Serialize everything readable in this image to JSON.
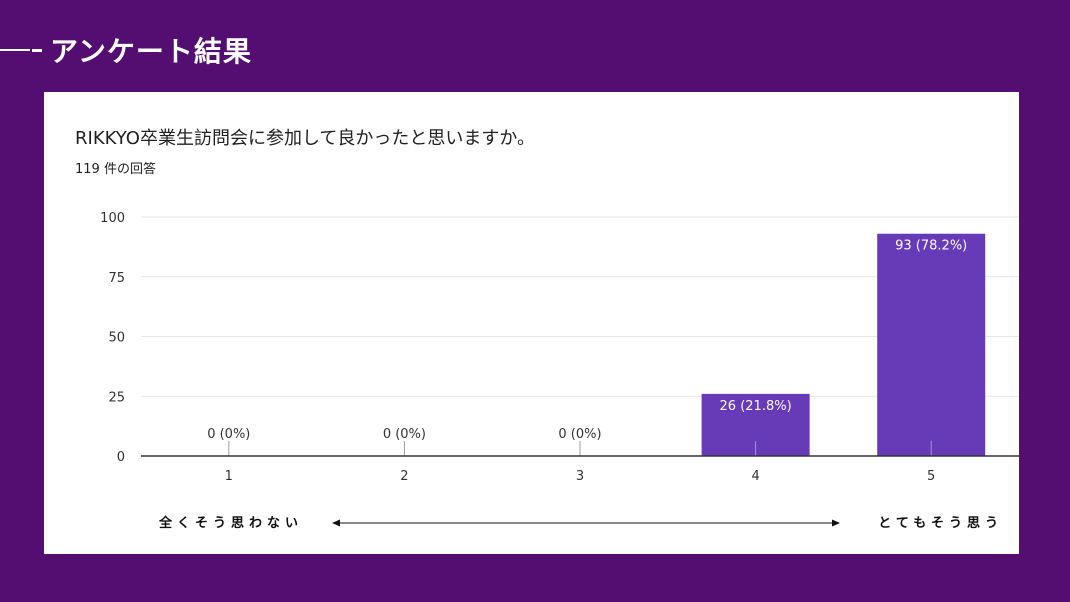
{
  "slide": {
    "title": "アンケート結果"
  },
  "card": {
    "question": "RIKKYO卒業生訪問会に参加して良かったと思いますか。",
    "responses": "119 件の回答"
  },
  "scale": {
    "left_label": "全くそう思わない",
    "right_label": "とてもそう思う"
  },
  "colors": {
    "background": "#540e71",
    "bar": "#673ab7",
    "grid": "#e6e6e6",
    "axis": "#333333"
  },
  "chart_data": {
    "type": "bar",
    "categories": [
      "1",
      "2",
      "3",
      "4",
      "5"
    ],
    "values": [
      0,
      0,
      0,
      26,
      93
    ],
    "data_labels": [
      "0 (0%)",
      "0 (0%)",
      "0 (0%)",
      "26 (21.8%)",
      "93 (78.2%)"
    ],
    "ylim": [
      0,
      100
    ],
    "yticks": [
      0,
      25,
      50,
      75,
      100
    ],
    "grid": true,
    "xlabel": "",
    "ylabel": ""
  }
}
